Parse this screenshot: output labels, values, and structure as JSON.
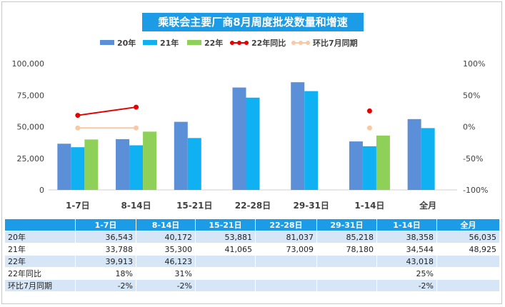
{
  "title": "乘联会主要厂商8月周度批发数量和增速",
  "colors": {
    "s20": "#5b8fd8",
    "s21": "#0fb1f2",
    "s22": "#8fd158",
    "yoy": "#e60000",
    "mom": "#f7c9a6",
    "title_bg": "#1c9ce6",
    "table_header": "#1c9ce6",
    "row_shade": "#d6e6f7"
  },
  "chart_data": {
    "type": "bar",
    "categories": [
      "1-7日",
      "8-14日",
      "15-21日",
      "22-28日",
      "29-31日",
      "1-14日",
      "全月"
    ],
    "series": [
      {
        "name": "20年",
        "kind": "bar",
        "values": [
          36543,
          40172,
          53881,
          81037,
          85218,
          38358,
          56035
        ]
      },
      {
        "name": "21年",
        "kind": "bar",
        "values": [
          33788,
          35300,
          41065,
          73009,
          78180,
          34544,
          48925
        ]
      },
      {
        "name": "22年",
        "kind": "bar",
        "values": [
          39913,
          46123,
          null,
          null,
          null,
          43018,
          null
        ]
      },
      {
        "name": "22年同比",
        "kind": "line",
        "axis": "right",
        "values": [
          18,
          31,
          null,
          null,
          null,
          25,
          null
        ]
      },
      {
        "name": "环比7月同期",
        "kind": "line",
        "axis": "right",
        "values": [
          -2,
          -2,
          null,
          null,
          null,
          -2,
          null
        ]
      }
    ],
    "y_left": {
      "min": 0,
      "max": 100000,
      "ticks": [
        "0",
        "25,000",
        "50,000",
        "75,000",
        "100,000"
      ]
    },
    "y_right": {
      "min": -100,
      "max": 100,
      "ticks": [
        "-100%",
        "-50%",
        "0%",
        "50%",
        "100%"
      ]
    },
    "legend_position": "top",
    "grid": false
  },
  "table": {
    "headers": [
      "",
      "1-7日",
      "8-14日",
      "15-21日",
      "22-28日",
      "29-31日",
      "1-14日",
      "全月"
    ],
    "rows": [
      {
        "label": "20年",
        "cells": [
          "36,543",
          "40,172",
          "53,881",
          "81,037",
          "85,218",
          "38,358",
          "56,035"
        ]
      },
      {
        "label": "21年",
        "cells": [
          "33,788",
          "35,300",
          "41,065",
          "73,009",
          "78,180",
          "34,544",
          "48,925"
        ]
      },
      {
        "label": "22年",
        "cells": [
          "39,913",
          "46,123",
          "",
          "",
          "",
          "43,018",
          ""
        ]
      },
      {
        "label": "22年同比",
        "cells": [
          "18%",
          "31%",
          "",
          "",
          "",
          "25%",
          ""
        ]
      },
      {
        "label": "环比7月同期",
        "cells": [
          "-2%",
          "-2%",
          "",
          "",
          "",
          "-2%",
          ""
        ]
      }
    ]
  }
}
